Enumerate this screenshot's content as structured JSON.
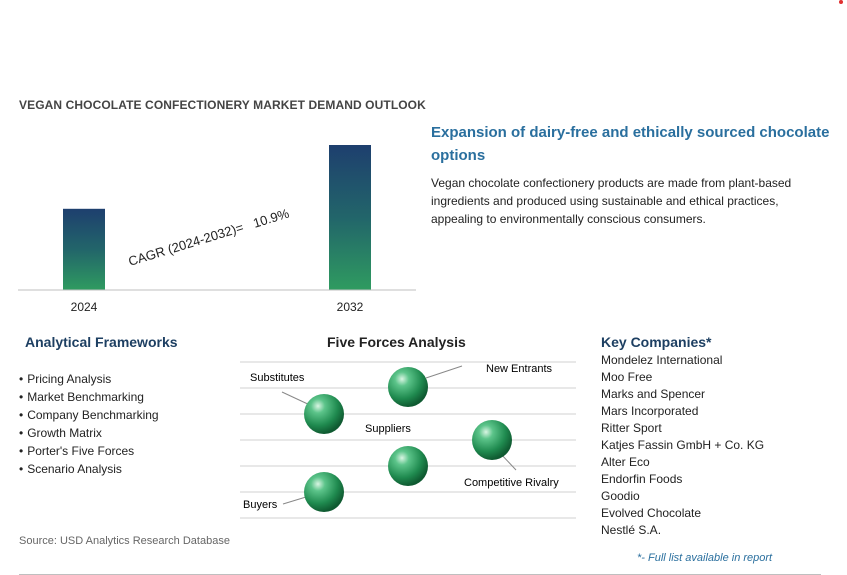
{
  "title": "VEGAN CHOCOLATE CONFECTIONERY MARKET DEMAND OUTLOOK",
  "chart_data": {
    "type": "bar",
    "categories": [
      "2024",
      "2032"
    ],
    "values": [
      0.56,
      1.0
    ],
    "value_unit": "relative bar height (no y-axis shown)",
    "annotation": "CAGR (2024-2032)=   10.9%",
    "xlabel": "",
    "ylabel": "",
    "grid": false,
    "colors": [
      "#1d4e6b",
      "#2f9b60"
    ]
  },
  "highlight": {
    "heading": "Expansion of dairy-free and ethically sourced chocolate options",
    "body": "Vegan chocolate confectionery products are made from plant-based ingredients and produced using sustainable and ethical practices, appealing to environmentally conscious consumers."
  },
  "frameworks": {
    "title": "Analytical Frameworks",
    "items": [
      "Pricing Analysis",
      "Market Benchmarking",
      "Company Benchmarking",
      "Growth Matrix",
      "Porter's Five Forces",
      "Scenario Analysis"
    ]
  },
  "five_forces": {
    "title": "Five Forces Analysis",
    "labels": {
      "substitutes": "Substitutes",
      "new_entrants": "New Entrants",
      "suppliers": "Suppliers",
      "competitive_rivalry": "Competitive Rivalry",
      "buyers": "Buyers"
    }
  },
  "companies": {
    "title": "Key Companies*",
    "items": [
      "Mondelez International",
      "Moo Free",
      "Marks and Spencer",
      "Mars Incorporated",
      "Ritter Sport",
      "Katjes Fassin GmbH + Co. KG",
      "Alter Eco",
      "Endorfin Foods",
      "Goodio",
      "Evolved Chocolate",
      "Nestlé S.A."
    ],
    "footnote": "*- Full list available in report"
  },
  "source": "Source: USD Analytics Research Database",
  "colors": {
    "accent_blue": "#2a6f9e",
    "navy": "#1d3f62",
    "sphere_green": "#2e9a5e"
  }
}
